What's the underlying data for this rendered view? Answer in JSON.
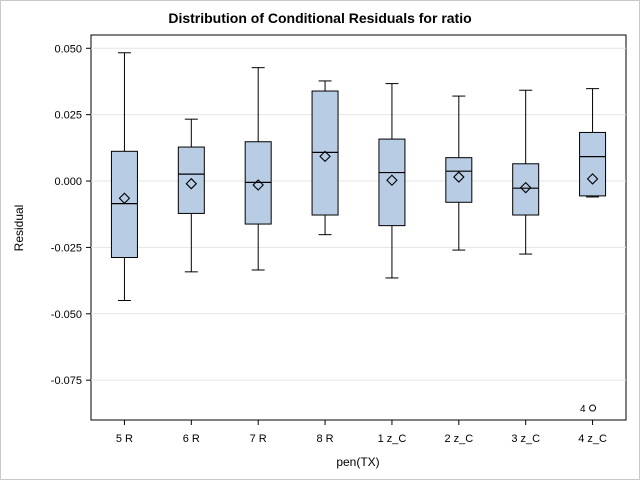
{
  "chart_data": {
    "type": "box",
    "title": "Distribution of Conditional Residuals for ratio",
    "xlabel": "pen(TX)",
    "ylabel": "Residual",
    "ylim": [
      -0.09,
      0.055
    ],
    "yticks": [
      0.05,
      0.025,
      0.0,
      -0.025,
      -0.05,
      -0.075
    ],
    "ytick_labels": [
      "0.050",
      "0.025",
      "0.000",
      "-0.025",
      "-0.050",
      "-0.075"
    ],
    "grid": "horizontal",
    "box_fill": "#b8cce4",
    "categories": [
      "5 R",
      "6 R",
      "7 R",
      "8 R",
      "1 z_C",
      "2 z_C",
      "3 z_C",
      "4 z_C"
    ],
    "boxes": [
      {
        "min": -0.045,
        "q1": -0.0288,
        "median": -0.0085,
        "q3": 0.0112,
        "max": 0.0483,
        "mean": -0.0065
      },
      {
        "min": -0.0342,
        "q1": -0.0122,
        "median": 0.0026,
        "q3": 0.0128,
        "max": 0.0233,
        "mean": -0.001
      },
      {
        "min": -0.0335,
        "q1": -0.0162,
        "median": -0.0005,
        "q3": 0.0148,
        "max": 0.0427,
        "mean": -0.0015
      },
      {
        "min": -0.0202,
        "q1": -0.0128,
        "median": 0.0108,
        "q3": 0.0339,
        "max": 0.0377,
        "mean": 0.0093
      },
      {
        "min": -0.0365,
        "q1": -0.0168,
        "median": 0.0032,
        "q3": 0.0158,
        "max": 0.0367,
        "mean": 0.0003
      },
      {
        "min": -0.026,
        "q1": -0.008,
        "median": 0.0037,
        "q3": 0.0088,
        "max": 0.032,
        "mean": 0.0015
      },
      {
        "min": -0.0275,
        "q1": -0.0128,
        "median": -0.0027,
        "q3": 0.0065,
        "max": 0.0342,
        "mean": -0.0025
      },
      {
        "min": -0.006,
        "q1": -0.0056,
        "median": 0.0092,
        "q3": 0.0183,
        "max": 0.0348,
        "mean": 0.0008
      }
    ],
    "outliers": [
      {
        "category": "4 z_C",
        "value": -0.0855,
        "label": "4"
      }
    ]
  }
}
